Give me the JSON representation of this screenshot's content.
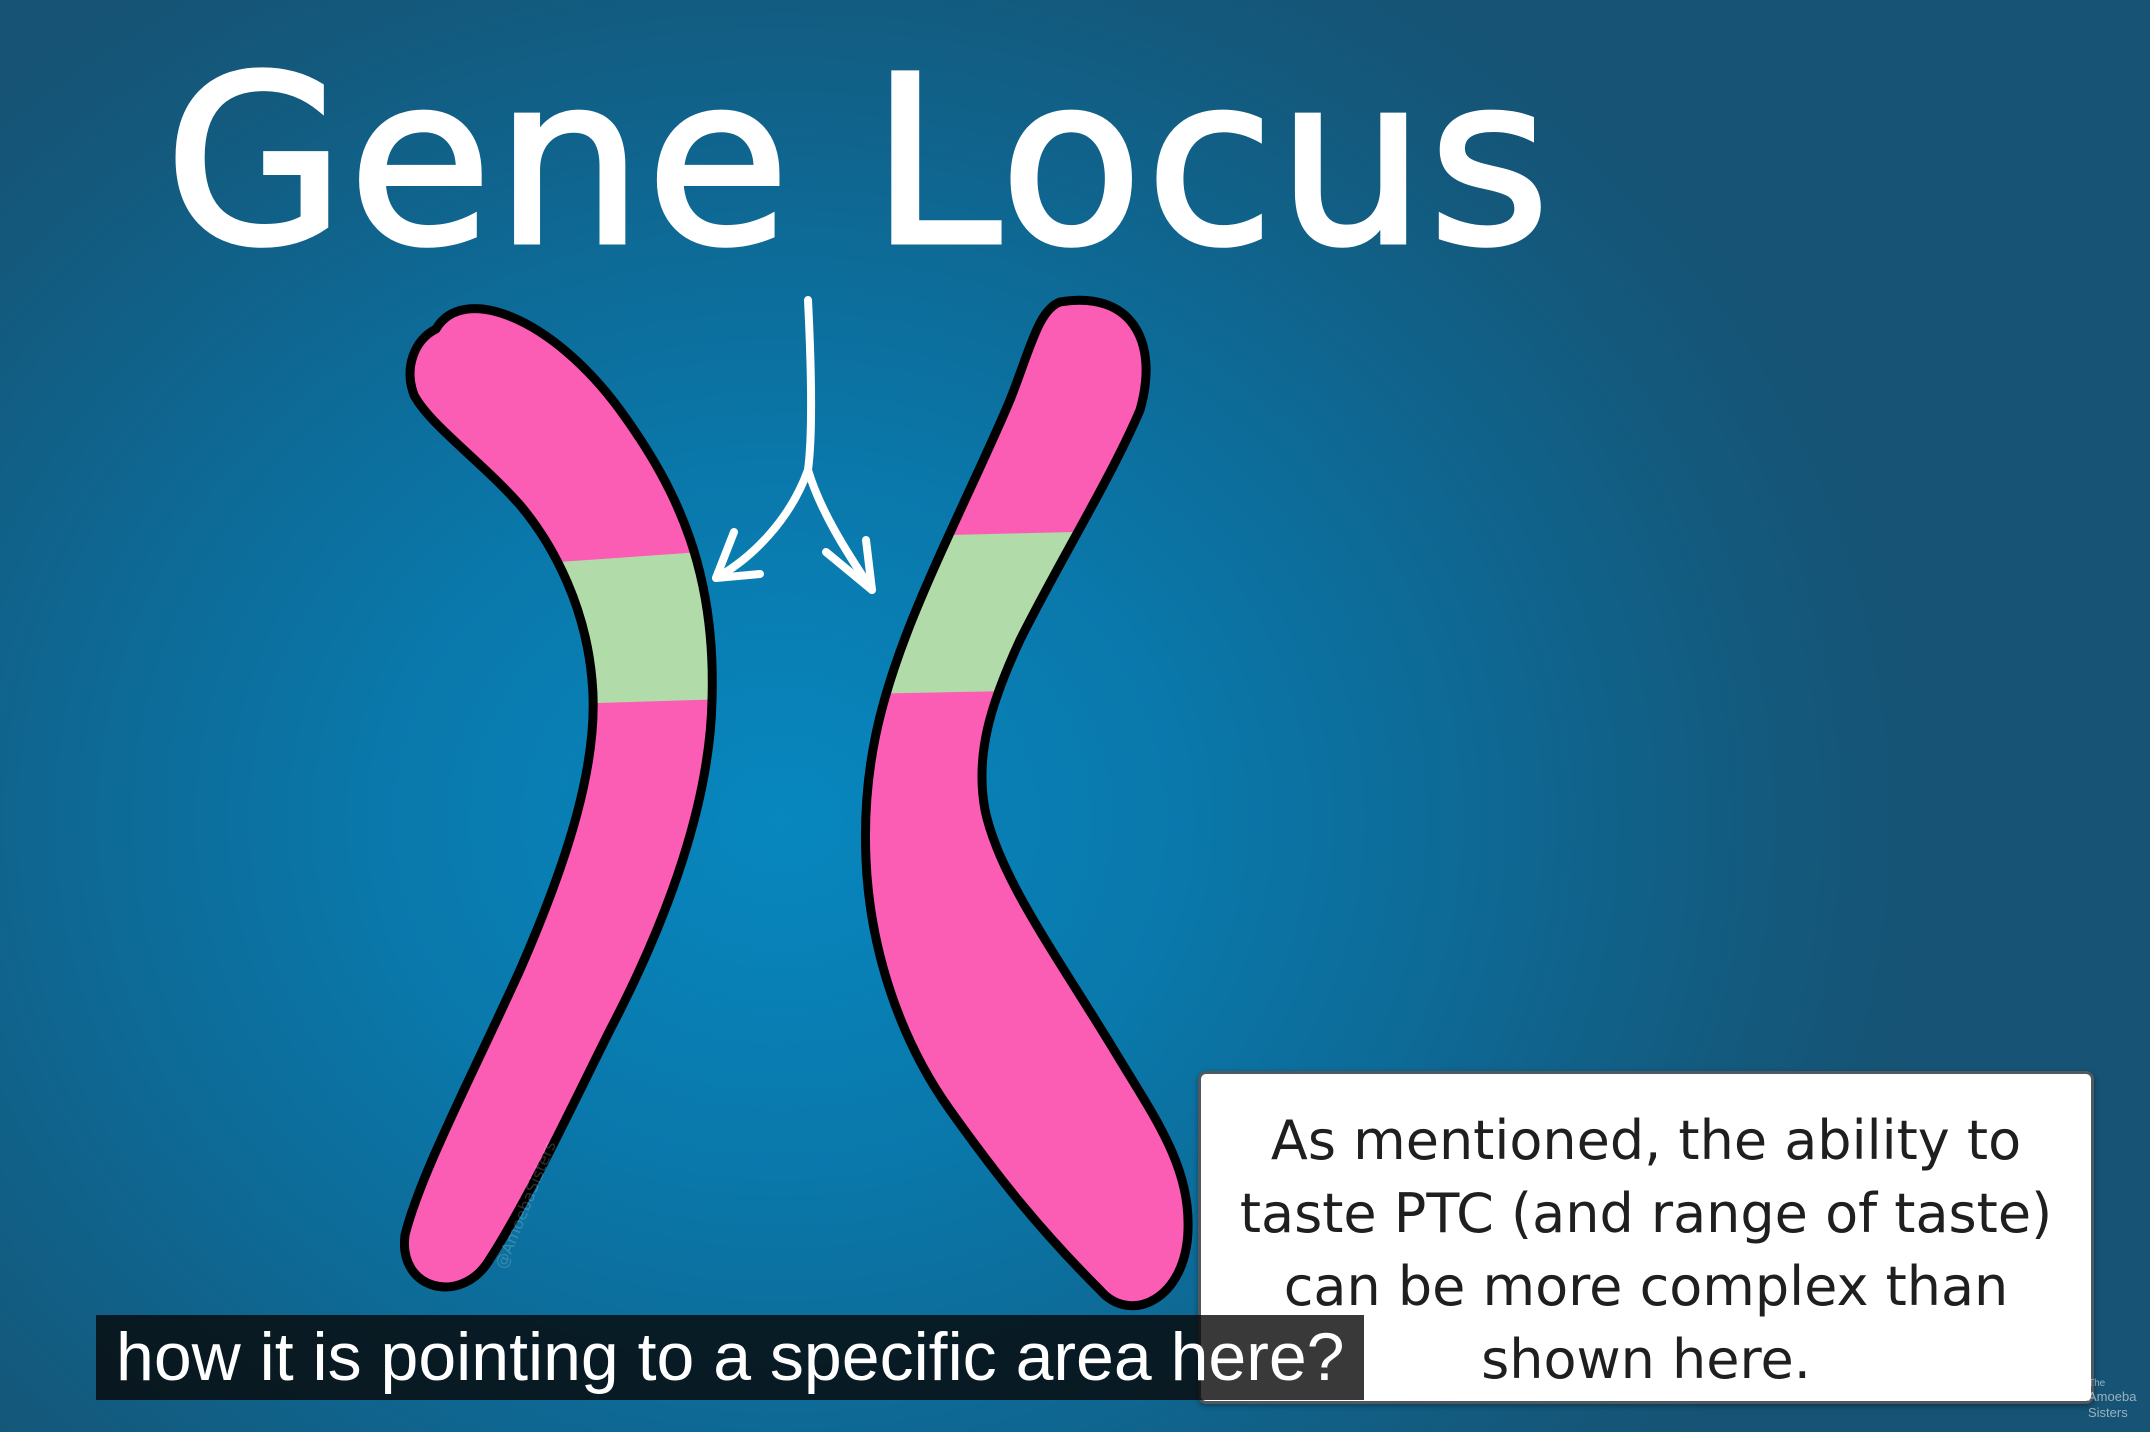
{
  "title": "Gene Locus",
  "info_card": {
    "text": "As mentioned, the ability to taste PTC (and range of taste) can be more complex than shown here."
  },
  "caption": {
    "text": "how it is pointing to a specific area here?"
  },
  "logo": {
    "line1": "The",
    "line2": "Amoeba",
    "line3": "Sisters"
  },
  "colors": {
    "background": "#0a7fb4",
    "chromosome": "#fb5cb4",
    "gene_locus_band": "#b1dba9",
    "outline": "#000000",
    "title": "#ffffff"
  }
}
